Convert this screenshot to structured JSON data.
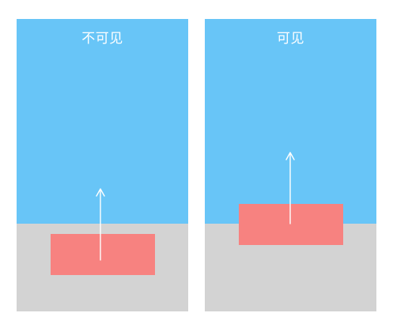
{
  "panels": [
    {
      "id": "left",
      "title": "不可见",
      "colors": {
        "sky": "#68c5f7",
        "ground": "#d3d3d3",
        "rect": "#f78280",
        "arrow": "#ffffff"
      }
    },
    {
      "id": "right",
      "title": "可见",
      "colors": {
        "sky": "#68c5f7",
        "ground": "#d3d3d3",
        "rect": "#f78280",
        "arrow": "#ffffff"
      }
    }
  ]
}
